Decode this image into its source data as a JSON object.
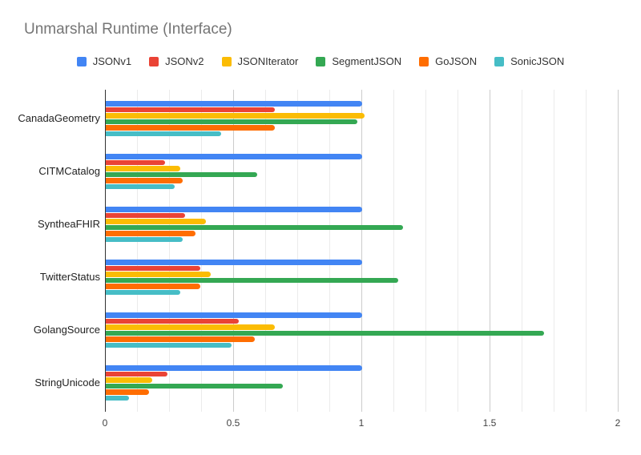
{
  "title": "Unmarshal Runtime (Interface)",
  "chart_data": {
    "type": "bar",
    "orientation": "horizontal",
    "title": "Unmarshal Runtime (Interface)",
    "categories": [
      "CanadaGeometry",
      "CITMCatalog",
      "SyntheaFHIR",
      "TwitterStatus",
      "GolangSource",
      "StringUnicode"
    ],
    "series": [
      {
        "name": "JSONv1",
        "color": "#4285F4",
        "values": [
          1.0,
          1.0,
          1.0,
          1.0,
          1.0,
          1.0
        ]
      },
      {
        "name": "JSONv2",
        "color": "#EA4335",
        "values": [
          0.66,
          0.23,
          0.31,
          0.37,
          0.52,
          0.24
        ]
      },
      {
        "name": "JSONIterator",
        "color": "#FBBC04",
        "values": [
          1.01,
          0.29,
          0.39,
          0.41,
          0.66,
          0.18
        ]
      },
      {
        "name": "SegmentJSON",
        "color": "#34A853",
        "values": [
          0.98,
          0.59,
          1.16,
          1.14,
          1.71,
          0.69
        ]
      },
      {
        "name": "GoJSON",
        "color": "#FF6D01",
        "values": [
          0.66,
          0.3,
          0.35,
          0.37,
          0.58,
          0.17
        ]
      },
      {
        "name": "SonicJSON",
        "color": "#46BDC6",
        "values": [
          0.45,
          0.27,
          0.3,
          0.29,
          0.49,
          0.09
        ]
      }
    ],
    "xlabel": "",
    "xlim": [
      0,
      2
    ],
    "x_ticks": {
      "values": [
        0,
        0.5,
        1,
        1.5,
        2
      ],
      "labels": [
        "0",
        "0.5",
        "1",
        "1.5",
        "2"
      ]
    },
    "minor_gridline_step": 0.125,
    "grid": true,
    "legend_position": "top"
  },
  "colors": {
    "background": "#ffffff",
    "title_text": "#757575",
    "category_text": "#222222",
    "axis_text": "#424242",
    "minor_gridline": "#ebebeb",
    "major_gridline": "#cccccc",
    "axis_line": "#333333"
  }
}
